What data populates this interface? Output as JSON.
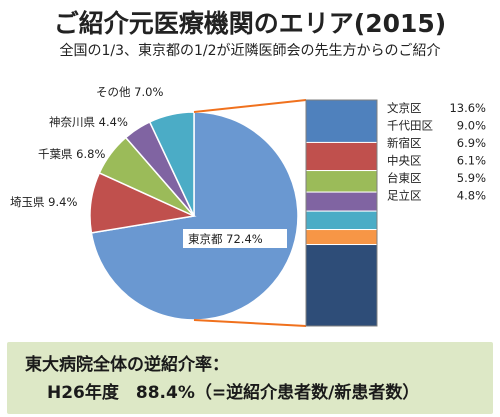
{
  "header": {
    "title": "ご紹介元医療機関のエリア(2015)",
    "subtitle": "全国の1/3、東京都の1/2が近隣医師会の先生方からのご紹介"
  },
  "chart_data": [
    {
      "type": "pie",
      "series": [
        {
          "label": "東京都 72.4%",
          "value": 72.4,
          "color": "#6a98d1"
        },
        {
          "label": "埼玉県 9.4%",
          "value": 9.4,
          "color": "#c0504d"
        },
        {
          "label": "千葉県 6.8%",
          "value": 6.8,
          "color": "#9bbb59"
        },
        {
          "label": "神奈川県 4.4%",
          "value": 4.4,
          "color": "#8064a2"
        },
        {
          "label": "その他 7.0%",
          "value": 7.0,
          "color": "#4bacc6"
        }
      ]
    },
    {
      "type": "bar",
      "stacked": true,
      "series": [
        {
          "name": "文京区",
          "value_label": "13.6%",
          "value": 13.6,
          "color": "#4f81bd"
        },
        {
          "name": "千代田区",
          "value_label": "9.0%",
          "value": 9.0,
          "color": "#c0504d"
        },
        {
          "name": "新宿区",
          "value_label": "6.9%",
          "value": 6.9,
          "color": "#9bbb59"
        },
        {
          "name": "中央区",
          "value_label": "6.1%",
          "value": 6.1,
          "color": "#8064a2"
        },
        {
          "name": "台東区",
          "value_label": "5.9%",
          "value": 5.9,
          "color": "#4bacc6"
        },
        {
          "name": "足立区",
          "value_label": "4.8%",
          "value": 4.8,
          "color": "#f79646"
        },
        {
          "name": "",
          "value_label": "",
          "value": 26.1,
          "color": "#2e4d78"
        }
      ]
    }
  ],
  "footer": {
    "line1": "東大病院全体の逆紹介率：",
    "line2": "H26年度　88.4%（=逆紹介患者数/新患者数）"
  },
  "connector_color": "#f0711d"
}
